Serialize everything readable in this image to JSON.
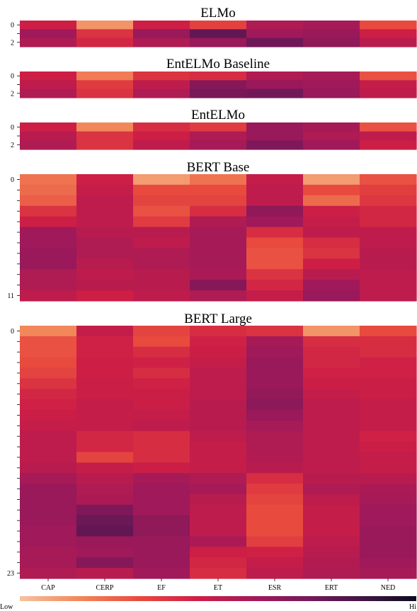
{
  "chart_data": {
    "type": "heatmap",
    "colorbar": {
      "low_label": "Low",
      "high_label": "Hi"
    },
    "columns": [
      "CAP",
      "CERP",
      "EF",
      "ET",
      "ESR",
      "ERT",
      "NED"
    ],
    "panels": [
      {
        "title": "ELMo",
        "y_tick_labels": [
          "0",
          "2"
        ],
        "rows": [
          [
            0.45,
            0.12,
            0.45,
            0.33,
            0.55,
            0.58,
            0.3
          ],
          [
            0.6,
            0.38,
            0.62,
            0.78,
            0.6,
            0.62,
            0.45
          ],
          [
            0.55,
            0.42,
            0.55,
            0.62,
            0.75,
            0.65,
            0.52
          ]
        ]
      },
      {
        "title": "EntELMo Baseline",
        "y_tick_labels": [
          "0",
          "2"
        ],
        "rows": [
          [
            0.45,
            0.18,
            0.38,
            0.4,
            0.55,
            0.58,
            0.28
          ],
          [
            0.5,
            0.35,
            0.5,
            0.68,
            0.62,
            0.6,
            0.48
          ],
          [
            0.55,
            0.38,
            0.55,
            0.72,
            0.74,
            0.62,
            0.5
          ]
        ]
      },
      {
        "title": "EntELMo",
        "y_tick_labels": [
          "0",
          "2"
        ],
        "rows": [
          [
            0.45,
            0.15,
            0.4,
            0.35,
            0.62,
            0.58,
            0.28
          ],
          [
            0.52,
            0.38,
            0.45,
            0.55,
            0.62,
            0.55,
            0.5
          ],
          [
            0.55,
            0.38,
            0.5,
            0.58,
            0.7,
            0.6,
            0.45
          ]
        ]
      },
      {
        "title": "BERT Base",
        "y_tick_labels": [
          "0",
          "11"
        ],
        "rows": [
          [
            0.2,
            0.45,
            0.1,
            0.2,
            0.48,
            0.1,
            0.28
          ],
          [
            0.22,
            0.48,
            0.3,
            0.3,
            0.5,
            0.3,
            0.34
          ],
          [
            0.25,
            0.5,
            0.32,
            0.32,
            0.5,
            0.22,
            0.36
          ],
          [
            0.38,
            0.5,
            0.28,
            0.4,
            0.65,
            0.45,
            0.42
          ],
          [
            0.45,
            0.5,
            0.35,
            0.55,
            0.6,
            0.48,
            0.42
          ],
          [
            0.6,
            0.52,
            0.52,
            0.58,
            0.4,
            0.5,
            0.5
          ],
          [
            0.6,
            0.55,
            0.5,
            0.58,
            0.3,
            0.4,
            0.5
          ],
          [
            0.62,
            0.55,
            0.55,
            0.58,
            0.28,
            0.38,
            0.52
          ],
          [
            0.62,
            0.52,
            0.55,
            0.58,
            0.28,
            0.45,
            0.52
          ],
          [
            0.55,
            0.5,
            0.52,
            0.56,
            0.38,
            0.52,
            0.5
          ],
          [
            0.55,
            0.52,
            0.52,
            0.68,
            0.42,
            0.6,
            0.5
          ],
          [
            0.5,
            0.45,
            0.5,
            0.55,
            0.48,
            0.62,
            0.5
          ]
        ]
      },
      {
        "title": "BERT Large",
        "y_tick_labels": [
          "0",
          "23"
        ],
        "rows": [
          [
            0.15,
            0.48,
            0.32,
            0.4,
            0.38,
            0.12,
            0.3
          ],
          [
            0.28,
            0.44,
            0.3,
            0.44,
            0.58,
            0.4,
            0.4
          ],
          [
            0.28,
            0.44,
            0.4,
            0.46,
            0.6,
            0.42,
            0.4
          ],
          [
            0.3,
            0.45,
            0.44,
            0.48,
            0.62,
            0.42,
            0.44
          ],
          [
            0.32,
            0.45,
            0.4,
            0.5,
            0.62,
            0.44,
            0.44
          ],
          [
            0.38,
            0.46,
            0.44,
            0.5,
            0.62,
            0.46,
            0.46
          ],
          [
            0.42,
            0.46,
            0.46,
            0.5,
            0.64,
            0.48,
            0.46
          ],
          [
            0.44,
            0.48,
            0.46,
            0.52,
            0.66,
            0.5,
            0.48
          ],
          [
            0.46,
            0.48,
            0.48,
            0.52,
            0.62,
            0.5,
            0.48
          ],
          [
            0.48,
            0.48,
            0.5,
            0.52,
            0.58,
            0.5,
            0.48
          ],
          [
            0.5,
            0.42,
            0.4,
            0.5,
            0.55,
            0.5,
            0.44
          ],
          [
            0.5,
            0.42,
            0.4,
            0.48,
            0.55,
            0.5,
            0.46
          ],
          [
            0.5,
            0.32,
            0.4,
            0.48,
            0.54,
            0.5,
            0.48
          ],
          [
            0.52,
            0.48,
            0.46,
            0.48,
            0.52,
            0.5,
            0.48
          ],
          [
            0.58,
            0.52,
            0.58,
            0.55,
            0.4,
            0.52,
            0.52
          ],
          [
            0.62,
            0.55,
            0.6,
            0.58,
            0.35,
            0.55,
            0.56
          ],
          [
            0.62,
            0.56,
            0.6,
            0.52,
            0.32,
            0.5,
            0.58
          ],
          [
            0.62,
            0.7,
            0.6,
            0.5,
            0.3,
            0.48,
            0.6
          ],
          [
            0.62,
            0.76,
            0.65,
            0.5,
            0.3,
            0.48,
            0.6
          ],
          [
            0.6,
            0.78,
            0.65,
            0.5,
            0.3,
            0.48,
            0.62
          ],
          [
            0.6,
            0.62,
            0.62,
            0.56,
            0.34,
            0.5,
            0.62
          ],
          [
            0.58,
            0.6,
            0.62,
            0.45,
            0.44,
            0.52,
            0.62
          ],
          [
            0.58,
            0.68,
            0.62,
            0.42,
            0.48,
            0.54,
            0.6
          ],
          [
            0.55,
            0.52,
            0.6,
            0.4,
            0.5,
            0.55,
            0.58
          ]
        ]
      }
    ]
  }
}
